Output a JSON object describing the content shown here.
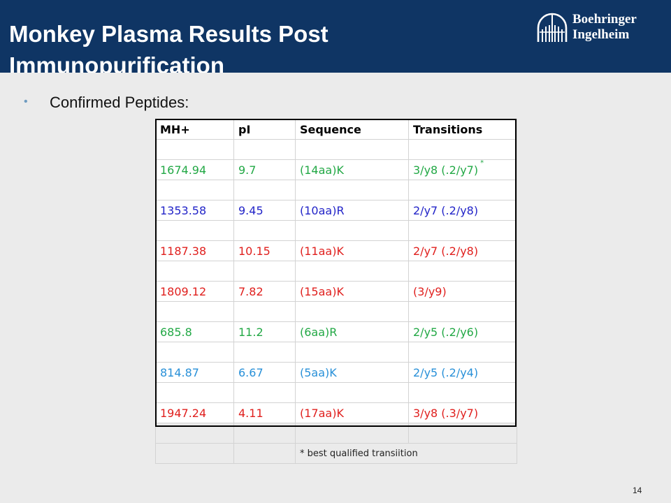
{
  "slide": {
    "title": "Monkey Plasma Results Post\nImmunopurification",
    "logo": {
      "line1": "Boehringer",
      "line2": "Ingelheim"
    },
    "bullet": "Confirmed Peptides:",
    "page_number": "14"
  },
  "table": {
    "headers": [
      "MH+",
      "pI",
      "Sequence",
      "Transitions"
    ],
    "rows": [
      {
        "mh": "1674.94",
        "pi": "9.7",
        "sequence": "(14aa)K",
        "transitions": "3/y8 (.2/y7)",
        "marker": "*",
        "color": "#22a845"
      },
      {
        "mh": "1353.58",
        "pi": "9.45",
        "sequence": "(10aa)R",
        "transitions": "2/y7 (.2/y8)",
        "marker": "",
        "color": "#2224c8"
      },
      {
        "mh": "1187.38",
        "pi": "10.15",
        "sequence": "(11aa)K",
        "transitions": "2/y7 (.2/y8)",
        "marker": "",
        "color": "#e0201e"
      },
      {
        "mh": "1809.12",
        "pi": "7.82",
        "sequence": "(15aa)K",
        "transitions": "(3/y9)",
        "marker": "",
        "color": "#e0201e"
      },
      {
        "mh": "685.8",
        "pi": "11.2",
        "sequence": "(6aa)R",
        "transitions": "2/y5 (.2/y6)",
        "marker": "",
        "color": "#22a845"
      },
      {
        "mh": "814.87",
        "pi": "6.67",
        "sequence": "(5aa)K",
        "transitions": "2/y5 (.2/y4)",
        "marker": "",
        "color": "#2890d8"
      },
      {
        "mh": "1947.24",
        "pi": "4.11",
        "sequence": "(17aa)K",
        "transitions": "3/y8 (.3/y7)",
        "marker": "",
        "color": "#e0201e"
      }
    ],
    "footnote": "* best qualified transiition"
  },
  "colors": {
    "header_bar": "#0f3564",
    "background": "#ebebeb",
    "bullet": "#6e9bc0"
  }
}
